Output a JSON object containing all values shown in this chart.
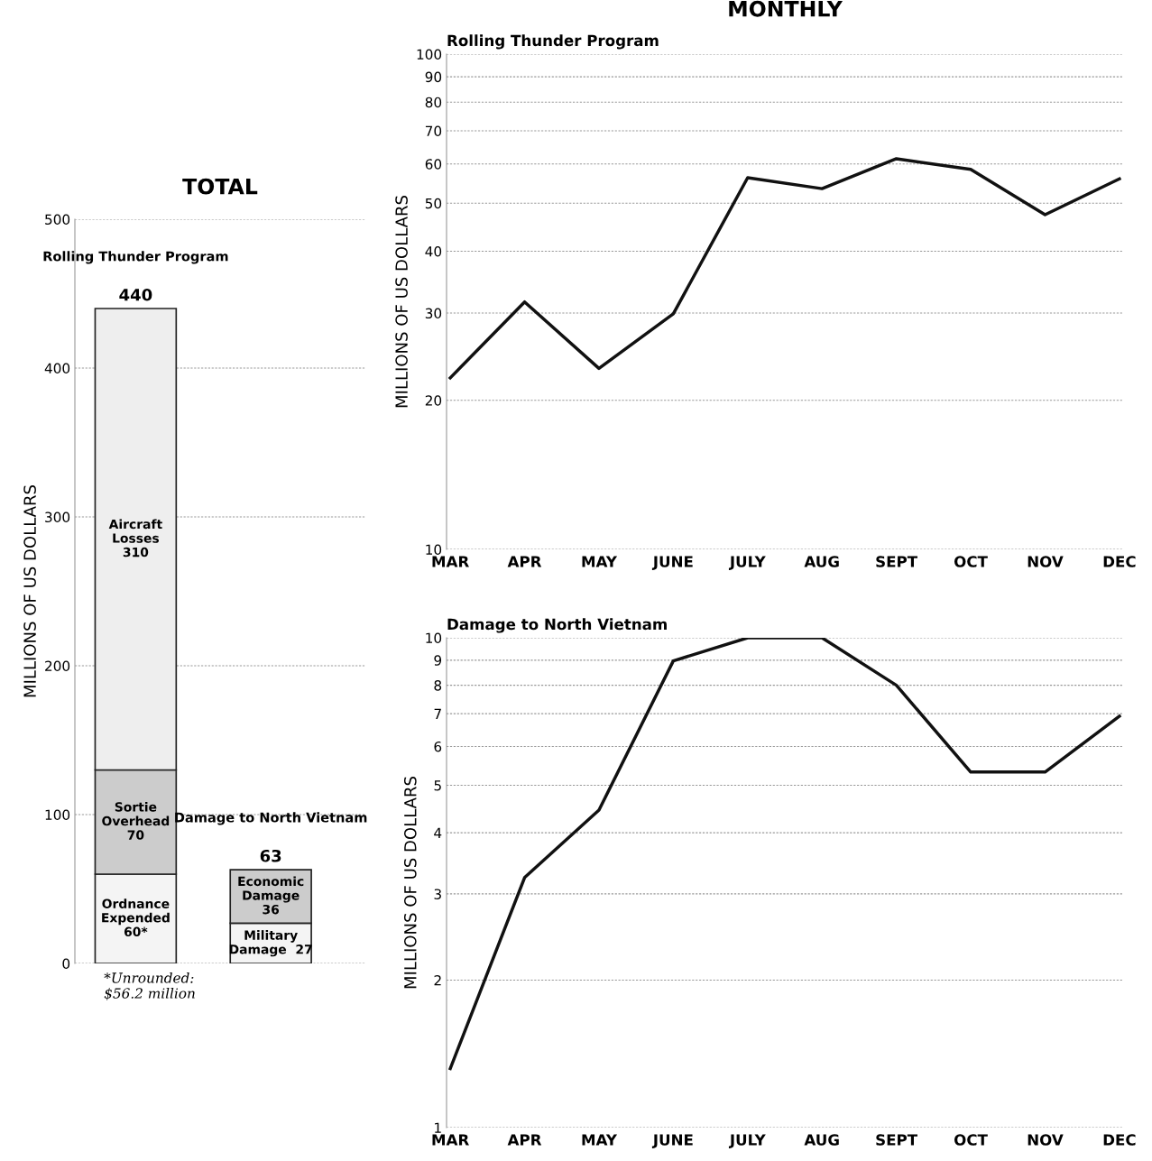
{
  "chart_data": [
    {
      "type": "bar",
      "stacked": true,
      "title": "TOTAL",
      "ylabel": "MILLIONS OF US DOLLARS",
      "categories": [
        "Rolling Thunder Program",
        "Damage to North Vietnam"
      ],
      "series": [
        {
          "color": "#f4f4f4",
          "values": [
            60,
            27
          ],
          "value_labels": [
            "Ordnance\nExpended\n60*",
            "Military\nDamage  27"
          ]
        },
        {
          "color": "#cccccc",
          "values": [
            70,
            36
          ],
          "value_labels": [
            "Sortie\nOverhead\n70",
            "Economic\nDamage\n36"
          ]
        },
        {
          "color": "#eeeeee",
          "values": [
            310,
            null
          ],
          "value_labels": [
            "Aircraft\nLosses\n310",
            null
          ]
        }
      ],
      "totals": [
        "440",
        "63"
      ],
      "ylim": [
        0,
        500
      ],
      "yticks": [
        0,
        100,
        200,
        300,
        400,
        500
      ],
      "grid": "y",
      "tick_labels": "y",
      "annotations": [
        "*Unrounded:\n$56.2 million"
      ]
    },
    {
      "type": "line",
      "title": "MONTHLY",
      "subtitle": "Rolling Thunder Program",
      "ylabel": "MILLIONS OF US DOLLARS",
      "categories": [
        "MAR",
        "APR",
        "MAY",
        "JUNE",
        "JULY",
        "AUG",
        "SEPT",
        "OCT",
        "NOV",
        "DEC"
      ],
      "series": [
        {
          "color": "#111111",
          "values": [
            22.2,
            31.6,
            23.2,
            29.9,
            56.3,
            53.5,
            61.5,
            58.5,
            47.4,
            56
          ]
        }
      ],
      "log": "y",
      "ylim": [
        10,
        100
      ],
      "yticks": [
        10,
        20,
        30,
        40,
        50,
        60,
        70,
        80,
        90,
        100
      ],
      "grid": "y",
      "marker": "none",
      "line_style": "solid"
    },
    {
      "type": "line",
      "subtitle": "Damage to North Vietnam",
      "ylabel": "MILLIONS OF US DOLLARS",
      "categories": [
        "MAR",
        "APR",
        "MAY",
        "JUNE",
        "JULY",
        "AUG",
        "SEPT",
        "OCT",
        "NOV",
        "DEC"
      ],
      "series": [
        {
          "color": "#111111",
          "values": [
            1.32,
            3.24,
            4.45,
            8.97,
            10,
            10,
            8.0,
            5.32,
            5.32,
            6.92
          ]
        }
      ],
      "log": "y",
      "ylim": [
        1,
        10
      ],
      "yticks": [
        1,
        2,
        3,
        4,
        5,
        6,
        7,
        8,
        9,
        10
      ],
      "grid": "y",
      "marker": "none",
      "line_style": "solid"
    }
  ]
}
